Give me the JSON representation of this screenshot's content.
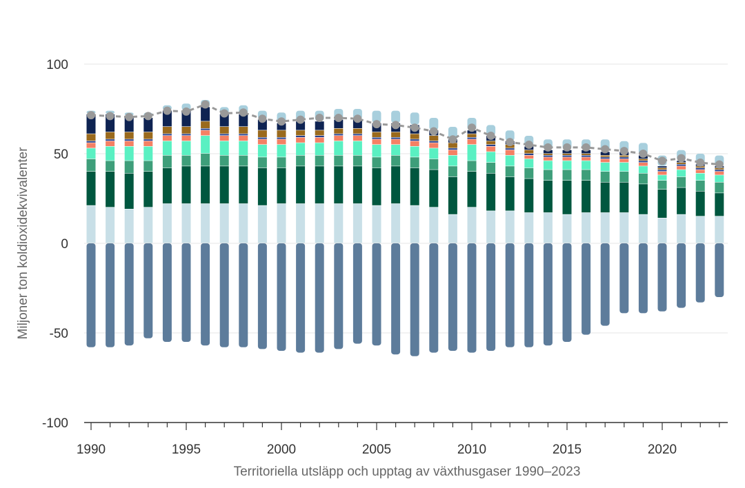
{
  "chart_data": {
    "type": "bar",
    "stacked": true,
    "title": "",
    "xlabel": "Territoriella utsläpp och upptag av växthusgaser 1990–2023",
    "ylabel": "Miljoner ton koldioxidekvivalenter",
    "ylim": [
      -100,
      100
    ],
    "yticks": [
      -100,
      -50,
      0,
      50,
      100
    ],
    "xticks": [
      1990,
      1995,
      2000,
      2005,
      2010,
      2015,
      2020
    ],
    "grid": true,
    "legend": "none",
    "x": [
      1990,
      1991,
      1992,
      1993,
      1994,
      1995,
      1996,
      1997,
      1998,
      1999,
      2000,
      2001,
      2002,
      2003,
      2004,
      2005,
      2006,
      2007,
      2008,
      2009,
      2010,
      2011,
      2012,
      2013,
      2014,
      2015,
      2016,
      2017,
      2018,
      2019,
      2020,
      2021,
      2022,
      2023
    ],
    "negative_series": {
      "color": "#5d7c9b",
      "values": [
        -58,
        -58,
        -57,
        -53,
        -55,
        -55,
        -57,
        -58,
        -58,
        -59,
        -60,
        -61,
        -61,
        -59,
        -56,
        -57,
        -62,
        -63,
        -61,
        -60,
        -61,
        -60,
        -58,
        -58,
        -57,
        -55,
        -51,
        -46,
        -39,
        -39,
        -38,
        -36,
        -33,
        -30
      ]
    },
    "series": [
      {
        "color": "#c8dfe7",
        "values": [
          21,
          20,
          19,
          20,
          22,
          22,
          22,
          22,
          22,
          21,
          22,
          22,
          22,
          22,
          22,
          21,
          22,
          21,
          20,
          16,
          20,
          18,
          18,
          17,
          17,
          16,
          17,
          17,
          17,
          16,
          14,
          16,
          15,
          15
        ]
      },
      {
        "color": "#00573f",
        "values": [
          19,
          20,
          20,
          20,
          20,
          21,
          21,
          21,
          21,
          21,
          20,
          21,
          21,
          21,
          21,
          21,
          21,
          21,
          21,
          21,
          20,
          21,
          19,
          19,
          18,
          19,
          18,
          17,
          17,
          17,
          16,
          15,
          14,
          13
        ]
      },
      {
        "color": "#3e9e7a",
        "values": [
          7,
          6,
          7,
          6,
          7,
          6,
          7,
          6,
          6,
          6,
          6,
          6,
          6,
          6,
          6,
          6,
          6,
          6,
          6,
          6,
          6,
          6,
          6,
          6,
          6,
          6,
          6,
          6,
          6,
          6,
          5,
          6,
          6,
          6
        ]
      },
      {
        "color": "#5af0c2",
        "values": [
          6,
          8,
          8,
          8,
          8,
          8,
          10,
          8,
          8,
          7,
          7,
          7,
          7,
          8,
          8,
          7,
          6,
          6,
          6,
          6,
          9,
          6,
          6,
          5,
          5,
          5,
          5,
          5,
          5,
          4,
          3,
          4,
          4,
          4
        ]
      },
      {
        "color": "#f48064",
        "values": [
          3,
          3,
          3,
          3,
          3,
          3,
          3,
          3,
          3,
          3,
          3,
          3,
          3,
          3,
          3,
          3,
          3,
          3,
          3,
          3,
          3,
          3,
          3,
          2,
          2,
          2,
          2,
          2,
          2,
          2,
          2,
          2,
          2,
          2
        ]
      },
      {
        "color": "#233e8c",
        "values": [
          1,
          1,
          1,
          1,
          1,
          1,
          1,
          1,
          1,
          1,
          1,
          1,
          1,
          1,
          1,
          1,
          1,
          1,
          1,
          1,
          1,
          1,
          1,
          1,
          1,
          1,
          1,
          1,
          1,
          1,
          1,
          1,
          1,
          1
        ]
      },
      {
        "color": "#9a6a1d",
        "values": [
          4,
          4,
          4,
          4,
          4,
          4,
          4,
          4,
          4,
          4,
          4,
          3,
          3,
          3,
          3,
          3,
          3,
          3,
          3,
          3,
          2,
          2,
          2,
          2,
          1,
          1,
          1,
          1,
          1,
          1,
          1,
          1,
          1,
          1
        ]
      },
      {
        "color": "#0e2352",
        "values": [
          11,
          10,
          9,
          8,
          9,
          9,
          8,
          7,
          7,
          6,
          4,
          5,
          5,
          5,
          5,
          5,
          5,
          5,
          3,
          2,
          2,
          3,
          2,
          2,
          2,
          2,
          2,
          2,
          2,
          2,
          1,
          1,
          1,
          1
        ]
      },
      {
        "color": "#a8cfdd",
        "values": [
          2,
          2,
          2,
          3,
          3,
          4,
          4,
          4,
          5,
          5,
          6,
          6,
          6,
          6,
          6,
          7,
          7,
          7,
          7,
          7,
          7,
          6,
          6,
          6,
          6,
          6,
          6,
          7,
          6,
          7,
          6,
          6,
          6,
          6
        ]
      }
    ],
    "net_line": {
      "color": "#999999",
      "style": "dashed",
      "values": [
        71.5,
        71,
        70.5,
        71,
        74,
        73.5,
        77.5,
        72.5,
        73,
        69.5,
        68,
        69,
        70,
        70,
        69.5,
        66.5,
        66,
        64.5,
        62.5,
        58,
        64.5,
        60,
        56.5,
        55,
        53.5,
        53.5,
        53.5,
        52.5,
        51.5,
        50,
        46,
        47.5,
        45,
        44
      ]
    }
  }
}
